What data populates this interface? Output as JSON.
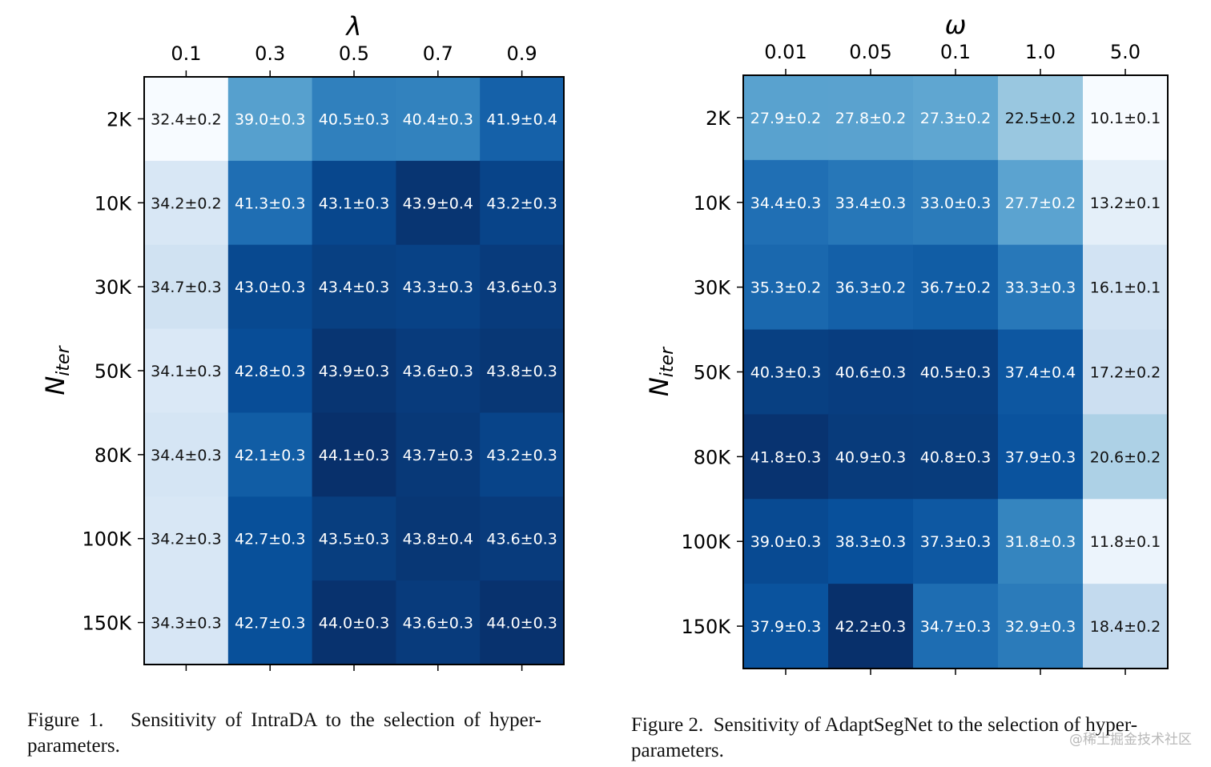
{
  "chart_data": [
    {
      "type": "heatmap",
      "colormap": "Blues",
      "xlabel": "λ",
      "ylabel_base": "N",
      "ylabel_sub": "iter",
      "x_categories": [
        "0.1",
        "0.3",
        "0.5",
        "0.7",
        "0.9"
      ],
      "y_categories": [
        "2K",
        "10K",
        "30K",
        "50K",
        "80K",
        "100K",
        "150K"
      ],
      "values": [
        [
          32.4,
          39.0,
          40.5,
          40.4,
          41.9
        ],
        [
          34.2,
          41.3,
          43.1,
          43.9,
          43.2
        ],
        [
          34.7,
          43.0,
          43.4,
          43.3,
          43.6
        ],
        [
          34.1,
          42.8,
          43.9,
          43.6,
          43.8
        ],
        [
          34.4,
          42.1,
          44.1,
          43.7,
          43.2
        ],
        [
          34.2,
          42.7,
          43.5,
          43.8,
          43.6
        ],
        [
          34.3,
          42.7,
          44.0,
          43.6,
          44.0
        ]
      ],
      "labels": [
        [
          "32.4±0.2",
          "39.0±0.3",
          "40.5±0.3",
          "40.4±0.3",
          "41.9±0.4"
        ],
        [
          "34.2±0.2",
          "41.3±0.3",
          "43.1±0.3",
          "43.9±0.4",
          "43.2±0.3"
        ],
        [
          "34.7±0.3",
          "43.0±0.3",
          "43.4±0.3",
          "43.3±0.3",
          "43.6±0.3"
        ],
        [
          "34.1±0.3",
          "42.8±0.3",
          "43.9±0.3",
          "43.6±0.3",
          "43.8±0.3"
        ],
        [
          "34.4±0.3",
          "42.1±0.3",
          "44.1±0.3",
          "43.7±0.3",
          "43.2±0.3"
        ],
        [
          "34.2±0.3",
          "42.7±0.3",
          "43.5±0.3",
          "43.8±0.4",
          "43.6±0.3"
        ],
        [
          "34.3±0.3",
          "42.7±0.3",
          "44.0±0.3",
          "43.6±0.3",
          "44.0±0.3"
        ]
      ],
      "vmin": 32.4,
      "vmax": 44.1
    },
    {
      "type": "heatmap",
      "colormap": "Blues",
      "xlabel": "ω",
      "ylabel_base": "N",
      "ylabel_sub": "iter",
      "x_categories": [
        "0.01",
        "0.05",
        "0.1",
        "1.0",
        "5.0"
      ],
      "y_categories": [
        "2K",
        "10K",
        "30K",
        "50K",
        "80K",
        "100K",
        "150K"
      ],
      "values": [
        [
          27.9,
          27.8,
          27.3,
          22.5,
          10.1
        ],
        [
          34.4,
          33.4,
          33.0,
          27.7,
          13.2
        ],
        [
          35.3,
          36.3,
          36.7,
          33.3,
          16.1
        ],
        [
          40.3,
          40.6,
          40.5,
          37.4,
          17.2
        ],
        [
          41.8,
          40.9,
          40.8,
          37.9,
          20.6
        ],
        [
          39.0,
          38.3,
          37.3,
          31.8,
          11.8
        ],
        [
          37.9,
          42.2,
          34.7,
          32.9,
          18.4
        ]
      ],
      "labels": [
        [
          "27.9±0.2",
          "27.8±0.2",
          "27.3±0.2",
          "22.5±0.2",
          "10.1±0.1"
        ],
        [
          "34.4±0.3",
          "33.4±0.3",
          "33.0±0.3",
          "27.7±0.2",
          "13.2±0.1"
        ],
        [
          "35.3±0.2",
          "36.3±0.2",
          "36.7±0.2",
          "33.3±0.3",
          "16.1±0.1"
        ],
        [
          "40.3±0.3",
          "40.6±0.3",
          "40.5±0.3",
          "37.4±0.4",
          "17.2±0.2"
        ],
        [
          "41.8±0.3",
          "40.9±0.3",
          "40.8±0.3",
          "37.9±0.3",
          "20.6±0.2"
        ],
        [
          "39.0±0.3",
          "38.3±0.3",
          "37.3±0.3",
          "31.8±0.3",
          "11.8±0.1"
        ],
        [
          "37.9±0.3",
          "42.2±0.3",
          "34.7±0.3",
          "32.9±0.3",
          "18.4±0.2"
        ]
      ],
      "vmin": 10.1,
      "vmax": 42.2
    }
  ],
  "captions": {
    "fig1_line1": "Figure 1.   Sensitivity of IntraDA to the selection of hyper-",
    "fig1_line2": "parameters.",
    "fig2_line1": "Figure 2.  Sensitivity of AdaptSegNet to the selection of hyper-",
    "fig2_line2": "parameters."
  },
  "watermark": "@稀土掘金技术社区"
}
